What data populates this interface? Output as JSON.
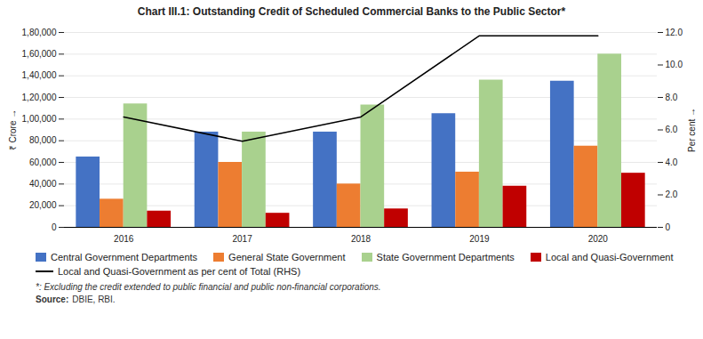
{
  "chart_data": {
    "type": "bar",
    "title": "Chart III.1: Outstanding Credit of Scheduled Commercial Banks to the Public Sector*",
    "categories": [
      "2016",
      "2017",
      "2018",
      "2019",
      "2020"
    ],
    "series": [
      {
        "name": "Central Government Departments",
        "color": "#4472c4",
        "values": [
          65000,
          88000,
          88000,
          105000,
          135000
        ]
      },
      {
        "name": "General State Government",
        "color": "#ed7d31",
        "values": [
          26000,
          60000,
          40000,
          51000,
          75000
        ]
      },
      {
        "name": "State Government Departments",
        "color": "#a9d18e",
        "values": [
          114000,
          88000,
          113000,
          136000,
          160000
        ]
      },
      {
        "name": "Local and Quasi-Government",
        "color": "#c00000",
        "values": [
          15000,
          13000,
          17000,
          38000,
          50000
        ]
      },
      {
        "name": "Local and Quasi-Government as per cent of Total (RHS)",
        "type": "line",
        "axis": "y2",
        "color": "#000000",
        "values": [
          6.8,
          5.3,
          6.8,
          11.8,
          11.8
        ]
      }
    ],
    "ylabel": "₹ Crore",
    "y2label": "Per cent",
    "ylim": [
      0,
      180000
    ],
    "yticks": [
      0,
      {
        "value": 20000,
        "label": "20,000"
      },
      {
        "value": 40000,
        "label": "40,000"
      },
      {
        "value": 60000,
        "label": "60,000"
      },
      {
        "value": 80000,
        "label": "80,000"
      },
      {
        "value": 100000,
        "label": "1,00,000"
      },
      {
        "value": 120000,
        "label": "1,20,000"
      },
      {
        "value": 140000,
        "label": "1,40,000"
      },
      {
        "value": 160000,
        "label": "1,60,000"
      },
      {
        "value": 180000,
        "label": "1,80,000"
      }
    ],
    "y2lim": [
      0,
      12.0
    ],
    "y2ticks": [
      0,
      {
        "value": 2,
        "label": "2.0"
      },
      {
        "value": 4,
        "label": "4.0"
      },
      {
        "value": 6,
        "label": "6.0"
      },
      {
        "value": 8,
        "label": "8.0"
      },
      {
        "value": 10,
        "label": "10.0"
      },
      {
        "value": 12,
        "label": "12.0"
      }
    ],
    "grid": true,
    "legend": "lower left",
    "footnote": "*: Excluding the credit extended to public financial and public non-financial corporations.",
    "source": {
      "label": "Source:",
      "text": "DBIE, RBI."
    }
  }
}
